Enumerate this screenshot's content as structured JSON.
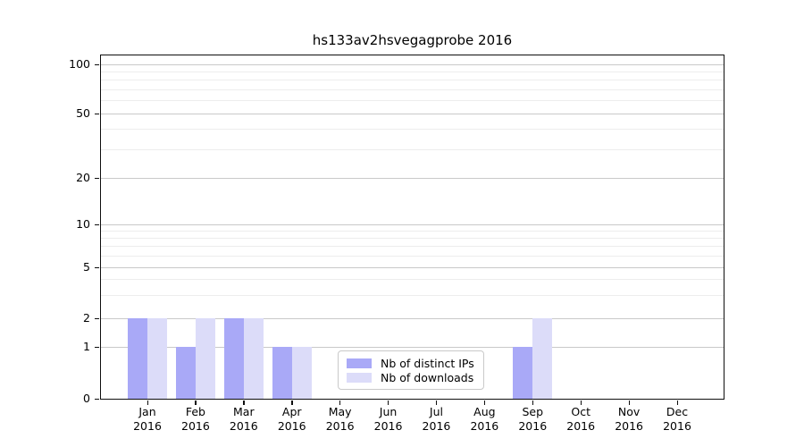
{
  "chart_data": {
    "type": "bar",
    "title": "hs133av2hsvegagprobe 2016",
    "categories": [
      "Jan",
      "Feb",
      "Mar",
      "Apr",
      "May",
      "Jun",
      "Jul",
      "Aug",
      "Sep",
      "Oct",
      "Nov",
      "Dec"
    ],
    "year_label": "2016",
    "series": [
      {
        "name": "Nb of distinct IPs",
        "color": "#a9a9f7",
        "values": [
          2,
          1,
          2,
          1,
          0,
          0,
          0,
          0,
          1,
          0,
          0,
          0
        ]
      },
      {
        "name": "Nb of downloads",
        "color": "#dcdcf9",
        "values": [
          2,
          2,
          2,
          1,
          0,
          0,
          0,
          0,
          2,
          0,
          0,
          0
        ]
      }
    ],
    "yscale": "symlog",
    "ylim": [
      0,
      100
    ],
    "y_major_ticks": [
      0,
      1,
      2,
      5,
      10,
      20,
      50,
      100
    ],
    "y_minor_ticks": [
      3,
      4,
      6,
      7,
      8,
      9,
      30,
      40,
      60,
      70,
      80,
      90
    ],
    "grid": "horizontal, major and minor",
    "legend_position": "lower center",
    "major_grid_color": "#c9c9c9",
    "minor_grid_color": "#ededed"
  }
}
